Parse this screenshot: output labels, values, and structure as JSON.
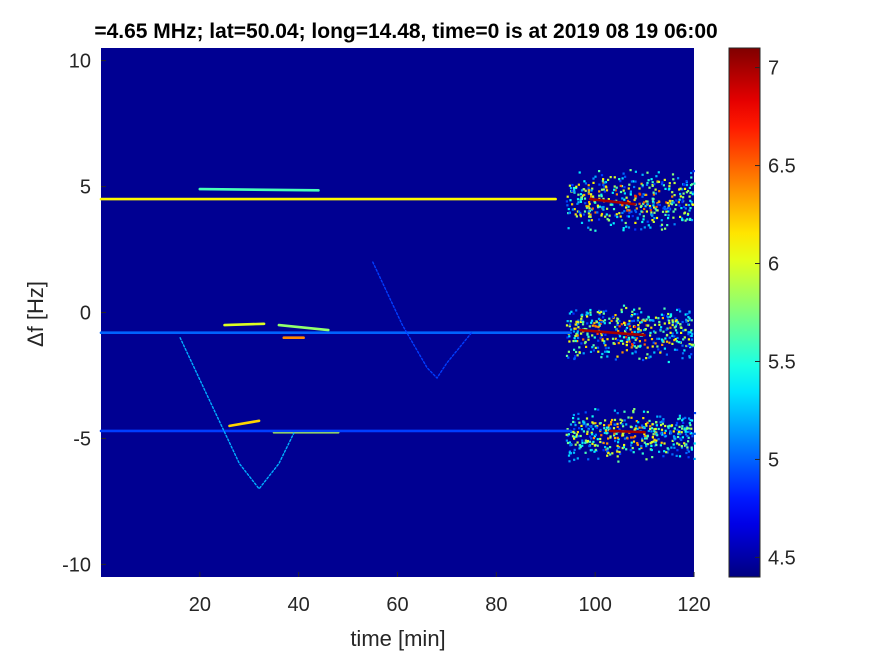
{
  "chart_data": {
    "type": "heatmap",
    "title": "=4.65 MHz;  lat=50.04; long=14.48, time=0 is at 2019 08 19 06:00",
    "xlabel": "time [min]",
    "ylabel": "Δf [Hz]",
    "xlim": [
      0,
      120
    ],
    "ylim": [
      -10.5,
      10.5
    ],
    "xticks": [
      20,
      40,
      60,
      80,
      100,
      120
    ],
    "yticks": [
      10,
      5,
      0,
      -5,
      -10
    ],
    "colorbar": {
      "ticks": [
        7,
        6.5,
        6,
        5.5,
        5,
        4.5
      ],
      "range": [
        4.4,
        7.1
      ],
      "colormap": "jet"
    },
    "background_value": 4.45,
    "features": [
      {
        "kind": "line",
        "x": [
          0,
          92
        ],
        "y": [
          4.5,
          4.5
        ],
        "value": 6.1
      },
      {
        "kind": "line",
        "x": [
          20,
          44
        ],
        "y": [
          4.9,
          4.85
        ],
        "value": 5.6
      },
      {
        "kind": "line",
        "x": [
          25,
          33
        ],
        "y": [
          -0.5,
          -0.45
        ],
        "value": 6.0
      },
      {
        "kind": "line",
        "x": [
          36,
          46
        ],
        "y": [
          -0.5,
          -0.7
        ],
        "value": 5.8
      },
      {
        "kind": "line",
        "x": [
          37,
          41
        ],
        "y": [
          -1.0,
          -1.0
        ],
        "value": 6.4
      },
      {
        "kind": "line",
        "x": [
          26,
          32
        ],
        "y": [
          -4.5,
          -4.3
        ],
        "value": 6.2
      },
      {
        "kind": "line",
        "x": [
          35,
          48
        ],
        "y": [
          -4.75,
          -4.75
        ],
        "value": 5.9
      },
      {
        "kind": "line",
        "x": [
          0,
          95
        ],
        "y": [
          -0.8,
          -0.8
        ],
        "value": 5.0
      },
      {
        "kind": "line",
        "x": [
          0,
          95
        ],
        "y": [
          -4.7,
          -4.7
        ],
        "value": 4.9
      },
      {
        "kind": "curve",
        "x": [
          16,
          22,
          28,
          32,
          36,
          39
        ],
        "y": [
          -1.0,
          -3.5,
          -6.0,
          -7.0,
          -6.0,
          -4.8
        ],
        "value": 5.2
      },
      {
        "kind": "curve",
        "x": [
          55,
          61,
          66,
          68,
          70,
          75
        ],
        "y": [
          2.0,
          -0.5,
          -2.2,
          -2.6,
          -2.0,
          -0.8
        ],
        "value": 4.9
      },
      {
        "kind": "line",
        "x": [
          99,
          108
        ],
        "y": [
          4.5,
          4.3
        ],
        "value": 7.0
      },
      {
        "kind": "line",
        "x": [
          97,
          110
        ],
        "y": [
          -0.7,
          -0.9
        ],
        "value": 7.0
      },
      {
        "kind": "line",
        "x": [
          103,
          110
        ],
        "y": [
          -4.7,
          -4.75
        ],
        "value": 7.0
      }
    ],
    "clusters": [
      {
        "x": [
          94,
          120
        ],
        "y": [
          3.2,
          5.8
        ],
        "peak": 6.8
      },
      {
        "x": [
          94,
          120
        ],
        "y": [
          -2.0,
          0.4
        ],
        "peak": 6.8
      },
      {
        "x": [
          94,
          120
        ],
        "y": [
          -5.9,
          -3.7
        ],
        "peak": 6.6
      }
    ]
  }
}
